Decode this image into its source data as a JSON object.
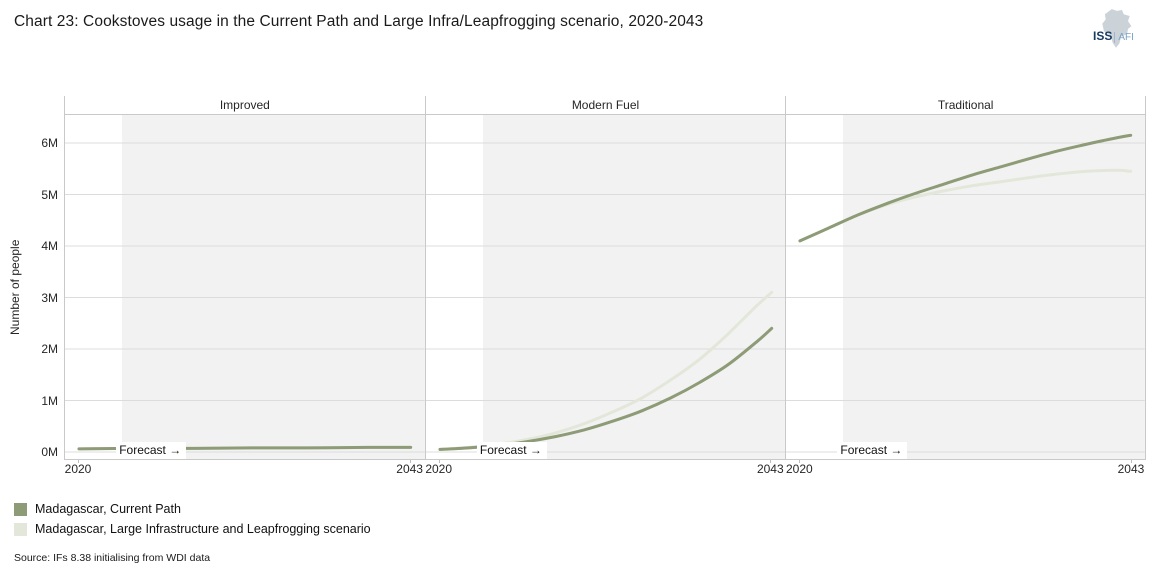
{
  "title": "Chart 23: Cookstoves usage in the Current Path and Large Infra/Leapfrogging scenario, 2020-2043",
  "logo": {
    "iss": "ISS",
    "afi": "AFI"
  },
  "y_axis": {
    "title": "Number of people",
    "ticks": [
      "0M",
      "1M",
      "2M",
      "3M",
      "4M",
      "5M",
      "6M"
    ]
  },
  "x_axis": {
    "start": "2020",
    "end": "2043"
  },
  "labels": {
    "forecast": "Forecast →"
  },
  "legend": [
    {
      "label": "Madagascar, Current Path",
      "color": "#8d9b76"
    },
    {
      "label": "Madagascar, Large Infrastructure and Leapfrogging scenario",
      "color": "#e3e7da"
    }
  ],
  "source": "Source: IFs 8.38 initialising from WDI data",
  "colors": {
    "current_path": "#8d9b76",
    "large_infra": "#e3e7da",
    "forecast_band": "#f2f2f2",
    "gridline": "#dcdcdc",
    "border": "#c9c9c9"
  },
  "chart_data": {
    "type": "line",
    "title": "Chart 23: Cookstoves usage in the Current Path and Large Infra/Leapfrogging scenario, 2020-2043",
    "ylabel": "Number of people",
    "yunit": "millions of people",
    "ylim": [
      0,
      6.55
    ],
    "ytick_values": [
      0,
      1,
      2,
      3,
      4,
      5,
      6
    ],
    "x_range": [
      2020,
      2043
    ],
    "forecast_start": 2023,
    "legend_position": "bottom-left",
    "grid": "horizontal",
    "panels": [
      {
        "title": "Improved",
        "x": [
          2020,
          2024,
          2028,
          2032,
          2036,
          2040,
          2043
        ],
        "series": [
          {
            "name": "Madagascar, Large Infrastructure and Leapfrogging scenario",
            "values": [
              0.06,
              0.07,
              0.07,
              0.08,
              0.08,
              0.09,
              0.09
            ]
          },
          {
            "name": "Madagascar, Current Path",
            "values": [
              0.06,
              0.07,
              0.07,
              0.08,
              0.08,
              0.09,
              0.09
            ]
          }
        ]
      },
      {
        "title": "Modern Fuel",
        "x": [
          2020,
          2022,
          2024,
          2026,
          2028,
          2030,
          2032,
          2034,
          2036,
          2038,
          2040,
          2042,
          2043
        ],
        "series": [
          {
            "name": "Madagascar, Large Infrastructure and Leapfrogging scenario",
            "values": [
              0.05,
              0.09,
              0.15,
              0.24,
              0.37,
              0.55,
              0.78,
              1.05,
              1.4,
              1.8,
              2.3,
              2.85,
              3.1
            ]
          },
          {
            "name": "Madagascar, Current Path",
            "values": [
              0.05,
              0.08,
              0.13,
              0.2,
              0.3,
              0.43,
              0.6,
              0.8,
              1.05,
              1.35,
              1.7,
              2.15,
              2.4
            ]
          }
        ]
      },
      {
        "title": "Traditional",
        "x": [
          2020,
          2022,
          2024,
          2026,
          2028,
          2030,
          2032,
          2034,
          2036,
          2038,
          2040,
          2042,
          2043
        ],
        "series": [
          {
            "name": "Madagascar, Large Infrastructure and Leapfrogging scenario",
            "values": [
              4.1,
              4.35,
              4.6,
              4.8,
              4.95,
              5.07,
              5.17,
              5.25,
              5.33,
              5.4,
              5.45,
              5.47,
              5.45
            ]
          },
          {
            "name": "Madagascar, Current Path",
            "values": [
              4.1,
              4.35,
              4.6,
              4.82,
              5.02,
              5.2,
              5.38,
              5.54,
              5.7,
              5.85,
              5.98,
              6.1,
              6.15
            ]
          }
        ]
      }
    ]
  }
}
